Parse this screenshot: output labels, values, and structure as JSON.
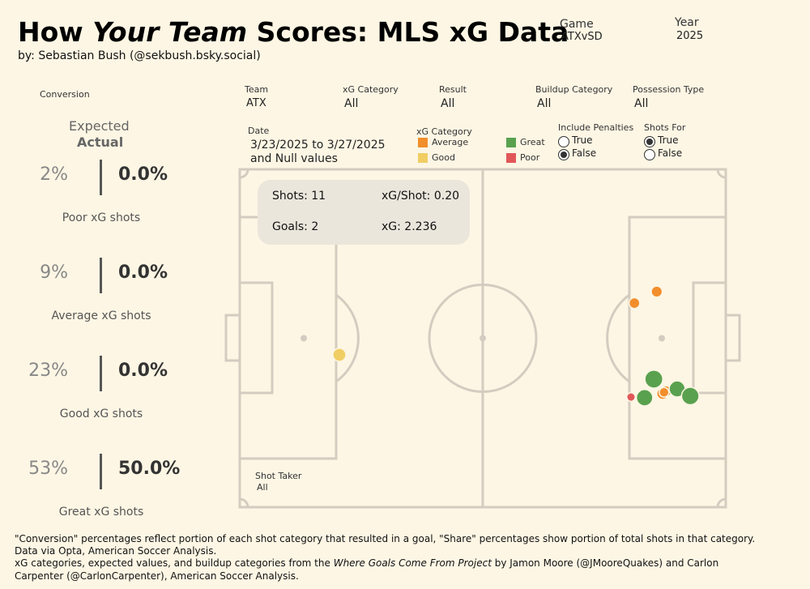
{
  "header": {
    "title_pre": "How ",
    "title_italic": "Your Team",
    "title_post": "  Scores: MLS xG Data",
    "byline": "by: Sebastian Bush (@sekbush.bsky.social)"
  },
  "filters": {
    "game": {
      "label": "Game",
      "value": "ATXvSD"
    },
    "year": {
      "label": "Year",
      "value": "2025"
    },
    "team": {
      "label": "Team",
      "value": "ATX"
    },
    "xg_category": {
      "label": "xG Category",
      "value": "All"
    },
    "result": {
      "label": "Result",
      "value": "All"
    },
    "buildup": {
      "label": "Buildup Category",
      "value": "All"
    },
    "possession": {
      "label": "Possession Type",
      "value": "All"
    },
    "date": {
      "label": "Date",
      "line1": "3/23/2025 to 3/27/2025",
      "line2": "and Null values"
    },
    "penalties": {
      "label": "Include Penalties",
      "options": [
        "True",
        "False"
      ],
      "selected": "False"
    },
    "shots_for": {
      "label": "Shots For",
      "options": [
        "True",
        "False"
      ],
      "selected": "True"
    },
    "shot_taker": {
      "label": "Shot Taker",
      "value": "All"
    }
  },
  "legend": {
    "title": "xG Category",
    "items": [
      {
        "label": "Average",
        "color": "#f28e2b"
      },
      {
        "label": "Good",
        "color": "#f1ce63"
      },
      {
        "label": "Great",
        "color": "#59a14f"
      },
      {
        "label": "Poor",
        "color": "#e15759"
      }
    ]
  },
  "conversion": {
    "title": "Conversion",
    "expected_label": "Expected",
    "actual_label": "Actual",
    "rows": [
      {
        "expected": "2%",
        "actual": "0.0%",
        "label": "Poor xG shots"
      },
      {
        "expected": "9%",
        "actual": "0.0%",
        "label": "Average xG shots"
      },
      {
        "expected": "23%",
        "actual": "0.0%",
        "label": "Good xG shots"
      },
      {
        "expected": "53%",
        "actual": "50.0%",
        "label": "Great xG shots"
      }
    ]
  },
  "stats": {
    "shots": "Shots: 11",
    "xg_per_shot": "xG/Shot: 0.20",
    "goals": "Goals: 2",
    "xg": "xG: 2.236"
  },
  "chart_data": {
    "type": "scatter",
    "pitch": "full pitch, attacking right",
    "x_range": [
      0,
      100
    ],
    "y_range": [
      0,
      100
    ],
    "shots": [
      {
        "x": 20.5,
        "y": 54.9,
        "xg": 0.18,
        "category": "Good"
      },
      {
        "x": 85.8,
        "y": 36.2,
        "xg": 0.1,
        "category": "Average"
      },
      {
        "x": 81.2,
        "y": 39.6,
        "xg": 0.09,
        "category": "Average"
      },
      {
        "x": 85.2,
        "y": 62.1,
        "xg": 0.45,
        "category": "Great"
      },
      {
        "x": 83.3,
        "y": 67.6,
        "xg": 0.35,
        "category": "Great"
      },
      {
        "x": 87.0,
        "y": 66.4,
        "xg": 0.12,
        "category": "Average"
      },
      {
        "x": 87.7,
        "y": 65.7,
        "xg": 0.1,
        "category": "Average"
      },
      {
        "x": 87.3,
        "y": 66.0,
        "xg": 0.06,
        "category": "Average"
      },
      {
        "x": 90.0,
        "y": 65.0,
        "xg": 0.33,
        "category": "Great"
      },
      {
        "x": 92.7,
        "y": 67.1,
        "xg": 0.42,
        "category": "Great"
      },
      {
        "x": 80.5,
        "y": 67.4,
        "xg": 0.036,
        "category": "Poor"
      }
    ]
  },
  "footer": {
    "line1": "\"Conversion\" percentages reflect portion of each shot category that resulted in a goal, \"Share\" percentages show portion of total shots in that category.",
    "line2": "Data via Opta, American Soccer Analysis.",
    "line3_pre": "xG categories, expected values, and buildup categories from the ",
    "line3_italic": "Where Goals Come From Project",
    "line3_post": " by Jamon Moore (@JMooreQuakes) and Carlon",
    "line4": "Carpenter (@CarlonCarpenter), American Soccer Analysis."
  }
}
